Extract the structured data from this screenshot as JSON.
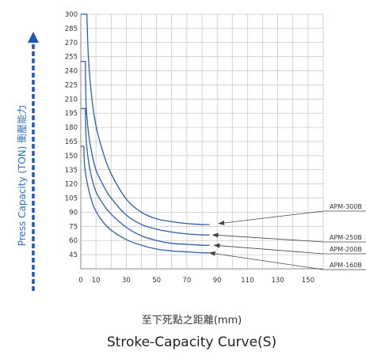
{
  "chart_data": {
    "type": "line",
    "title": "Stroke-Capacity Curve(S)",
    "xlabel": "至下死點之距離(mm)",
    "ylabel": "Press Capacity (TON) 衝壓能力",
    "xlim": [
      0,
      160
    ],
    "ylim": [
      30,
      300
    ],
    "x_ticks": [
      0,
      10,
      30,
      50,
      70,
      90,
      110,
      130,
      150
    ],
    "y_ticks": [
      45,
      60,
      75,
      90,
      105,
      120,
      135,
      150,
      165,
      180,
      195,
      210,
      225,
      240,
      255,
      270,
      285,
      300
    ],
    "grid": true,
    "legend": "callout labels on right",
    "series": [
      {
        "name": "APM-300B",
        "x": [
          0,
          4,
          5,
          7,
          10,
          15,
          20,
          30,
          40,
          50,
          60,
          70,
          80,
          85
        ],
        "y": [
          300,
          300,
          255,
          215,
          182,
          152,
          131,
          104,
          90,
          83,
          80,
          78,
          77,
          77
        ]
      },
      {
        "name": "APM-250B",
        "x": [
          0,
          3,
          3.5,
          5,
          7,
          10,
          15,
          20,
          30,
          40,
          50,
          60,
          70,
          80,
          85
        ],
        "y": [
          250,
          250,
          205,
          175,
          155,
          135,
          118,
          105,
          87,
          77,
          72,
          69,
          67,
          66,
          66
        ]
      },
      {
        "name": "APM-200B",
        "x": [
          0,
          3,
          3.5,
          5,
          7,
          10,
          15,
          20,
          30,
          40,
          50,
          60,
          70,
          80,
          85
        ],
        "y": [
          200,
          200,
          168,
          145,
          128,
          112,
          98,
          88,
          74,
          65,
          60,
          57,
          56,
          55,
          55
        ]
      },
      {
        "name": "APM-160B",
        "x": [
          0,
          2,
          2.5,
          4,
          7,
          10,
          15,
          20,
          30,
          40,
          50,
          60,
          70,
          80,
          85
        ],
        "y": [
          160,
          160,
          140,
          123,
          103,
          91,
          79,
          71,
          61,
          55,
          51,
          49,
          48,
          47,
          47
        ]
      }
    ],
    "callout_points": {
      "APM-300B": [
        90,
        78
      ],
      "APM-250B": [
        86,
        66
      ],
      "APM-200B": [
        87,
        55
      ],
      "APM-160B": [
        84,
        47
      ]
    },
    "colors": {
      "line": "#2d5ea8",
      "arrow": "#444444",
      "ytitle": "#2c6fbf"
    }
  }
}
